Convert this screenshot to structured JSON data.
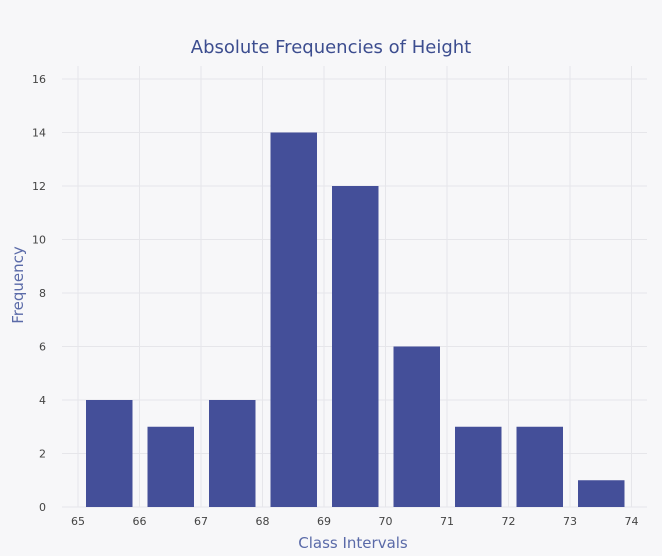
{
  "chart_data": {
    "type": "bar",
    "title": "Absolute Frequencies of Height",
    "xlabel": "Class Intervals",
    "ylabel": "Frequency",
    "x_tick_labels": [
      "65",
      "66",
      "67",
      "68",
      "69",
      "70",
      "71",
      "72",
      "73",
      "74"
    ],
    "y_tick_labels": [
      "0",
      "2",
      "4",
      "6",
      "8",
      "10",
      "12",
      "14",
      "16"
    ],
    "ylim": [
      0,
      16
    ],
    "xlim": [
      65,
      74
    ],
    "grid": true,
    "bins": [
      {
        "start": 65,
        "end": 66,
        "value": 4
      },
      {
        "start": 66,
        "end": 67,
        "value": 3
      },
      {
        "start": 67,
        "end": 68,
        "value": 4
      },
      {
        "start": 68,
        "end": 69,
        "value": 14
      },
      {
        "start": 69,
        "end": 70,
        "value": 12
      },
      {
        "start": 70,
        "end": 71,
        "value": 6
      },
      {
        "start": 71,
        "end": 72,
        "value": 3
      },
      {
        "start": 72,
        "end": 73,
        "value": 3
      },
      {
        "start": 73,
        "end": 74,
        "value": 1
      }
    ],
    "colors": {
      "bar": "#444f99",
      "grid": "#e6e6ea",
      "background": "#f7f7f9",
      "title": "#3c4d8f",
      "axis_title": "#5a6aa8"
    }
  }
}
